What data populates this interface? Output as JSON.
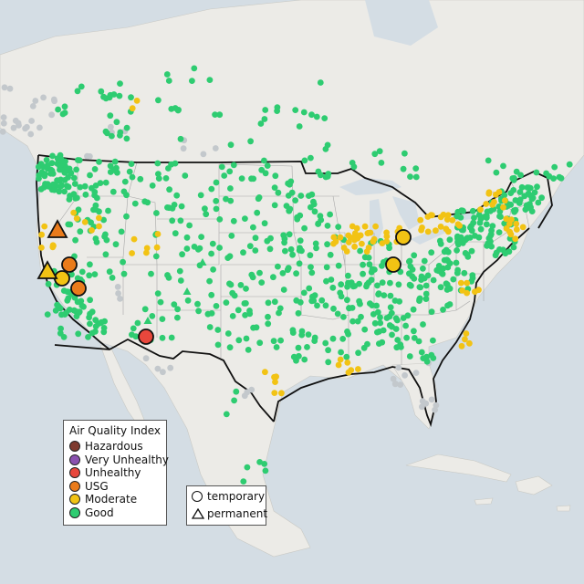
{
  "legend": {
    "title": "Air Quality Index",
    "items": [
      {
        "label": "Hazardous",
        "color": "#7e3a2e"
      },
      {
        "label": "Very Unhealthy",
        "color": "#8a52b0"
      },
      {
        "label": "Unhealthy",
        "color": "#e8473c"
      },
      {
        "label": "USG",
        "color": "#ea7b1b"
      },
      {
        "label": "Moderate",
        "color": "#f2c314"
      },
      {
        "label": "Good",
        "color": "#2ecc71"
      }
    ]
  },
  "type_legend": {
    "temporary": "temporary",
    "permanent": "permanent"
  },
  "colors": {
    "water": "#d4dde4",
    "land": "#ecebe7",
    "state_line": "#9a9a9a",
    "country_border": "#111111",
    "inactive_monitor": "#c3c8cc"
  },
  "monitors": {
    "temporary_large": [
      {
        "level": "USG"
      },
      {
        "level": "Moderate"
      },
      {
        "level": "USG"
      },
      {
        "level": "Unhealthy"
      },
      {
        "level": "Moderate"
      },
      {
        "level": "Moderate"
      }
    ],
    "permanent_large": [
      {
        "level": "USG"
      },
      {
        "level": "Moderate"
      }
    ]
  }
}
